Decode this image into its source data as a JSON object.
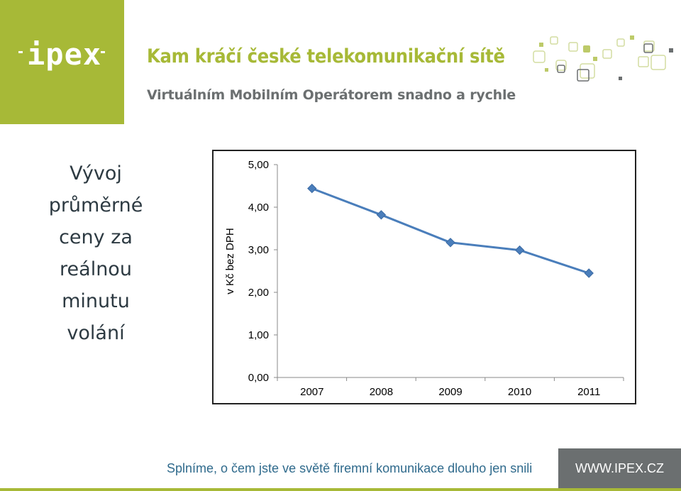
{
  "header": {
    "logo_text": "ipex",
    "title": "Kam kráčí české telekomunikační sítě",
    "subtitle": "Virtuálním Mobilním Operátorem snadno a rychle"
  },
  "left_heading": {
    "lines": [
      "Vývoj",
      "průměrné",
      "ceny za",
      "reálnou",
      "minutu",
      "volání"
    ]
  },
  "chart_data": {
    "type": "line",
    "categories": [
      "2007",
      "2008",
      "2009",
      "2010",
      "2011"
    ],
    "series": [
      {
        "values": [
          4.44,
          3.82,
          3.17,
          2.99,
          2.45
        ]
      }
    ],
    "ylabel": "v Kč bez DPH",
    "yticks": [
      "0,00",
      "1,00",
      "2,00",
      "3,00",
      "4,00",
      "5,00"
    ],
    "ylim": [
      0,
      5
    ],
    "grid": false,
    "legend": "none",
    "line_color": "#4a7ebb"
  },
  "footer": {
    "slogan": "Splníme, o čem jste ve světě firemní komunikace dlouho jen snili",
    "url": "WWW.IPEX.CZ"
  },
  "colors": {
    "brand_green": "#a7b937",
    "gray": "#6b6f70",
    "footer_blue": "#2f6a8c"
  }
}
